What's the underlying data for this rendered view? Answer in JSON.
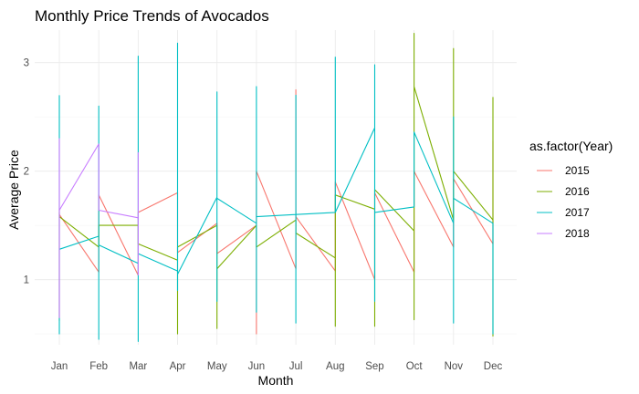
{
  "chart_data": {
    "type": "line",
    "title": "Monthly Price Trends of Avocados",
    "xlabel": "Month",
    "ylabel": "Average Price",
    "categories": [
      "Jan",
      "Feb",
      "Mar",
      "Apr",
      "May",
      "Jun",
      "Jul",
      "Aug",
      "Sep",
      "Oct",
      "Nov",
      "Dec"
    ],
    "y_ticks": [
      "1",
      "2",
      "3"
    ],
    "ylim": [
      0.4,
      3.3
    ],
    "grid": true,
    "legend": {
      "title": "as.factor(Year)",
      "position": "right"
    },
    "note": "Each series is drawn as a single path through all observations in month order, producing vertical spikes within each month.",
    "series": [
      {
        "name": "2015",
        "color": "#F8766D",
        "points": [
          [
            "Jan",
            1.65
          ],
          [
            "Jan",
            1.6
          ],
          [
            "Feb",
            1.07
          ],
          [
            "Feb",
            1.78
          ],
          [
            "Mar",
            1.04
          ],
          [
            "Mar",
            1.62
          ],
          [
            "Apr",
            1.8
          ],
          [
            "Apr",
            1.25
          ],
          [
            "May",
            1.52
          ],
          [
            "May",
            1.24
          ],
          [
            "Jun",
            1.5
          ],
          [
            "Jun",
            0.5
          ],
          [
            "Jun",
            2.0
          ],
          [
            "Jul",
            1.1
          ],
          [
            "Jul",
            2.75
          ],
          [
            "Jul",
            1.58
          ],
          [
            "Aug",
            1.08
          ],
          [
            "Aug",
            1.9
          ],
          [
            "Sep",
            1.0
          ],
          [
            "Sep",
            1.8
          ],
          [
            "Oct",
            1.07
          ],
          [
            "Oct",
            2.0
          ],
          [
            "Nov",
            1.3
          ],
          [
            "Nov",
            1.93
          ],
          [
            "Dec",
            1.33
          ],
          [
            "Dec",
            2.28
          ]
        ]
      },
      {
        "name": "2016",
        "color": "#7CAE00",
        "points": [
          [
            "Jan",
            1.62
          ],
          [
            "Jan",
            0.62
          ],
          [
            "Jan",
            1.58
          ],
          [
            "Feb",
            1.3
          ],
          [
            "Feb",
            1.5
          ],
          [
            "Mar",
            1.5
          ],
          [
            "Mar",
            1.33
          ],
          [
            "Apr",
            1.18
          ],
          [
            "Apr",
            0.5
          ],
          [
            "Apr",
            1.3
          ],
          [
            "May",
            1.5
          ],
          [
            "May",
            0.55
          ],
          [
            "May",
            1.1
          ],
          [
            "Jun",
            1.5
          ],
          [
            "Jun",
            1.3
          ],
          [
            "Jul",
            1.55
          ],
          [
            "Jul",
            1.43
          ],
          [
            "Aug",
            1.2
          ],
          [
            "Aug",
            0.57
          ],
          [
            "Aug",
            1.78
          ],
          [
            "Sep",
            1.65
          ],
          [
            "Sep",
            0.57
          ],
          [
            "Sep",
            1.05
          ],
          [
            "Sep",
            1.83
          ],
          [
            "Oct",
            1.45
          ],
          [
            "Oct",
            0.63
          ],
          [
            "Oct",
            3.27
          ],
          [
            "Oct",
            2.78
          ],
          [
            "Nov",
            1.55
          ],
          [
            "Nov",
            3.13
          ],
          [
            "Nov",
            2.0
          ],
          [
            "Dec",
            1.55
          ],
          [
            "Dec",
            0.48
          ],
          [
            "Dec",
            2.68
          ],
          [
            "Dec",
            1.47
          ]
        ]
      },
      {
        "name": "2017",
        "color": "#00BFC4",
        "points": [
          [
            "Jan",
            2.7
          ],
          [
            "Jan",
            0.5
          ],
          [
            "Jan",
            1.28
          ],
          [
            "Feb",
            1.4
          ],
          [
            "Feb",
            2.6
          ],
          [
            "Feb",
            0.45
          ],
          [
            "Feb",
            1.32
          ],
          [
            "Mar",
            1.15
          ],
          [
            "Mar",
            3.06
          ],
          [
            "Mar",
            0.43
          ],
          [
            "Mar",
            1.24
          ],
          [
            "Apr",
            1.08
          ],
          [
            "Apr",
            3.18
          ],
          [
            "Apr",
            0.9
          ],
          [
            "Apr",
            1.05
          ],
          [
            "May",
            1.76
          ],
          [
            "May",
            2.73
          ],
          [
            "May",
            0.8
          ],
          [
            "May",
            1.75
          ],
          [
            "Jun",
            1.52
          ],
          [
            "Jun",
            2.78
          ],
          [
            "Jun",
            0.7
          ],
          [
            "Jun",
            1.58
          ],
          [
            "Jul",
            1.6
          ],
          [
            "Jul",
            2.7
          ],
          [
            "Jul",
            0.6
          ],
          [
            "Jul",
            1.6
          ],
          [
            "Aug",
            1.62
          ],
          [
            "Aug",
            3.05
          ],
          [
            "Aug",
            1.62
          ],
          [
            "Sep",
            2.4
          ],
          [
            "Sep",
            2.98
          ],
          [
            "Sep",
            0.8
          ],
          [
            "Sep",
            1.62
          ],
          [
            "Oct",
            1.67
          ],
          [
            "Oct",
            2.36
          ],
          [
            "Nov",
            1.52
          ],
          [
            "Nov",
            2.5
          ],
          [
            "Nov",
            0.6
          ],
          [
            "Nov",
            1.75
          ],
          [
            "Dec",
            1.52
          ],
          [
            "Dec",
            0.5
          ],
          [
            "Dec",
            1.5
          ]
        ]
      },
      {
        "name": "2018",
        "color": "#C77CFF",
        "points": [
          [
            "Jan",
            1.63
          ],
          [
            "Jan",
            2.3
          ],
          [
            "Jan",
            0.65
          ],
          [
            "Jan",
            1.64
          ],
          [
            "Feb",
            2.25
          ],
          [
            "Feb",
            1.64
          ],
          [
            "Mar",
            1.57
          ],
          [
            "Mar",
            2.17
          ],
          [
            "Mar",
            1.04
          ]
        ]
      }
    ]
  }
}
